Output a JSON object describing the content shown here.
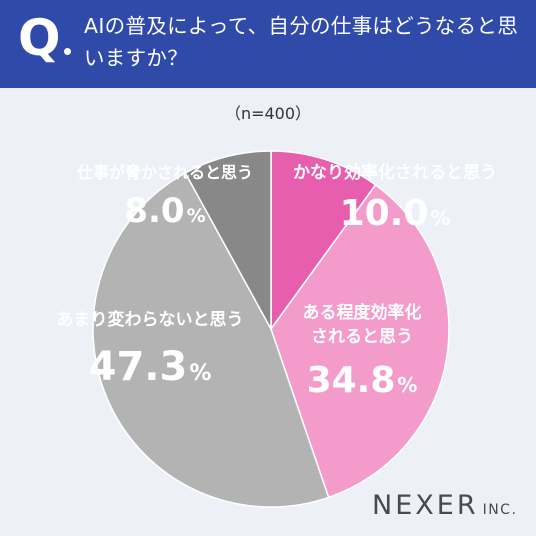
{
  "header": {
    "q_mark": "Q",
    "question": "AIの普及によって、自分の仕事はどうなると思いますか？"
  },
  "sample_label": "（n=400）",
  "chart_data": {
    "type": "pie",
    "start_angle": "12 o'clock",
    "direction": "clockwise",
    "slices": [
      {
        "label": "かなり効率化されると思う",
        "value": 10.0,
        "display": "10.0",
        "color": "#e85eae",
        "text_color": "#ffffff"
      },
      {
        "label": "ある程度効率化されると思う",
        "value": 34.8,
        "display": "34.8",
        "color": "#f39ccb",
        "text_color": "#ffffff"
      },
      {
        "label": "あまり変わらないと思う",
        "value": 47.3,
        "display": "47.3",
        "color": "#b3b3b3",
        "text_color": "#ffffff"
      },
      {
        "label": "仕事が脅かされると思う",
        "value": 8.0,
        "display": "8.0",
        "color": "#888888",
        "text_color": "#ffffff"
      }
    ],
    "unit": "%"
  },
  "logo": {
    "main": "NEXER",
    "sub": "INC."
  },
  "colors": {
    "header_bg": "#2f4aa8",
    "background": "#eef0f8"
  }
}
